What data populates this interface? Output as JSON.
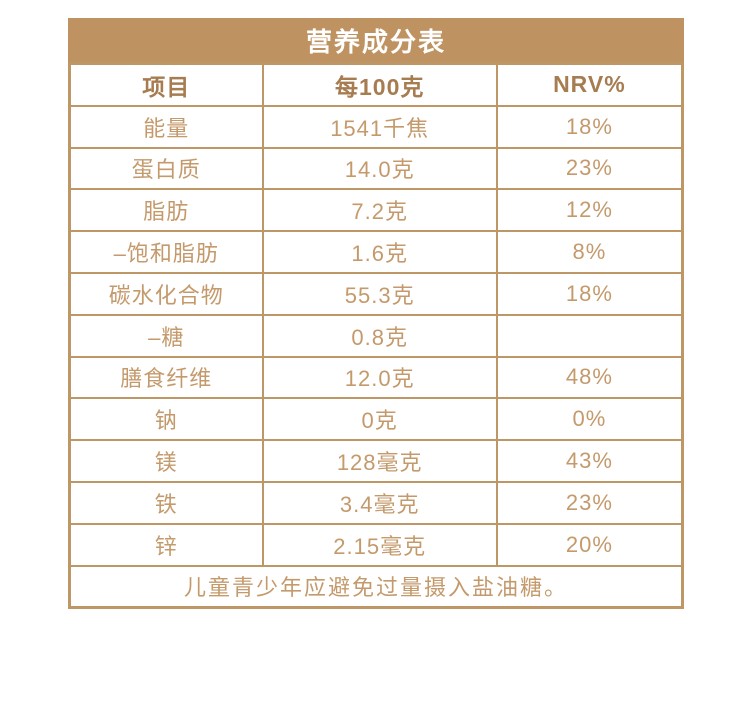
{
  "table": {
    "title": "营养成分表",
    "columns": [
      "项目",
      "每100克",
      "NRV%"
    ],
    "rows": [
      {
        "item": "能量",
        "per100g": "1541千焦",
        "nrv": "18%"
      },
      {
        "item": "蛋白质",
        "per100g": "14.0克",
        "nrv": "23%"
      },
      {
        "item": "脂肪",
        "per100g": "7.2克",
        "nrv": "12%"
      },
      {
        "item": "–饱和脂肪",
        "per100g": "1.6克",
        "nrv": "8%"
      },
      {
        "item": "碳水化合物",
        "per100g": "55.3克",
        "nrv": "18%"
      },
      {
        "item": "–糖",
        "per100g": "0.8克",
        "nrv": ""
      },
      {
        "item": "膳食纤维",
        "per100g": "12.0克",
        "nrv": "48%"
      },
      {
        "item": "钠",
        "per100g": "0克",
        "nrv": "0%"
      },
      {
        "item": "镁",
        "per100g": "128毫克",
        "nrv": "43%"
      },
      {
        "item": "铁",
        "per100g": "3.4毫克",
        "nrv": "23%"
      },
      {
        "item": "锌",
        "per100g": "2.15毫克",
        "nrv": "20%"
      }
    ],
    "footnote": "儿童青少年应避免过量摄入盐油糖。"
  },
  "colors": {
    "band_background": "#BF9262",
    "border": "#BD9766",
    "header_text": "#A67C50",
    "body_text": "#C49A6C",
    "title_text": "#FFFFFF",
    "page_background": "#FFFFFF"
  }
}
